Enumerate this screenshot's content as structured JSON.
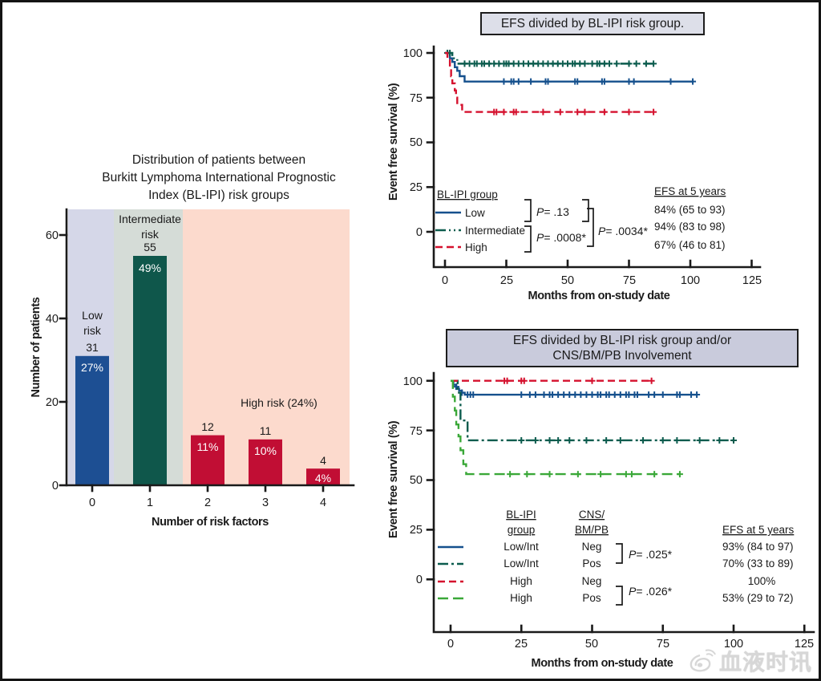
{
  "page": {
    "background": "#ffffff",
    "border_color": "#141414",
    "watermark": {
      "text": "血液时讯",
      "icon": "weibo-icon"
    }
  },
  "chart_data": [
    {
      "id": "bar-distribution",
      "type": "bar",
      "title_lines": [
        "Distribution of patients between",
        "Burkitt Lymphoma International Prognostic",
        "Index (BL-IPI) risk groups"
      ],
      "xlabel": "Number of risk factors",
      "ylabel": "Number of patients",
      "categories": [
        "0",
        "1",
        "2",
        "3",
        "4"
      ],
      "values": [
        31,
        55,
        12,
        11,
        4
      ],
      "count_labels": [
        "31",
        "55",
        "12",
        "11",
        "4"
      ],
      "pct_labels": [
        "27%",
        "49%",
        "11%",
        "10%",
        "4%"
      ],
      "bar_colors": [
        "#1d4f93",
        "#0f574b",
        "#c10e34",
        "#c10e34",
        "#c10e34"
      ],
      "ylim": [
        0,
        66
      ],
      "yticks": [
        0,
        20,
        40,
        60
      ],
      "grid": false,
      "bands": [
        {
          "label_lines": [
            "Low",
            "risk"
          ],
          "color": "#d5d7e8"
        },
        {
          "label_lines": [
            "Intermediate",
            "risk"
          ],
          "color": "#d5dcd7"
        },
        {
          "label_lines": [
            "High risk (24%)"
          ],
          "color": "#fcdacd"
        }
      ]
    },
    {
      "id": "km-efs-by-blipi",
      "type": "line",
      "title": "EFS divided by BL-IPI risk group.",
      "xlabel": "Months from on-study date",
      "ylabel": "Event free survival (%)",
      "xticks": [
        0,
        25,
        50,
        75,
        100,
        125
      ],
      "yticks": [
        0,
        25,
        50,
        75,
        100
      ],
      "xlim": [
        0,
        125
      ],
      "ylim": [
        0,
        100
      ],
      "legend_title": "BL-IPI group",
      "efs_header": "EFS at 5 years",
      "p_values": [
        {
          "p": "P",
          "value": "= .13"
        },
        {
          "p": "P",
          "value": "= .0008*"
        },
        {
          "p": "P",
          "value": "= .0034*"
        }
      ],
      "series": [
        {
          "name": "Low",
          "color": "#15508d",
          "dash": "",
          "steps": [
            [
              0,
              100
            ],
            [
              2,
              97
            ],
            [
              3,
              95
            ],
            [
              4,
              92
            ],
            [
              5,
              90
            ],
            [
              6,
              87
            ],
            [
              8,
              84
            ]
          ],
          "end_month": 101,
          "censors": [
            [
              1,
              100
            ],
            [
              24,
              84
            ],
            [
              27,
              84
            ],
            [
              28,
              84
            ],
            [
              30,
              84
            ],
            [
              35,
              84
            ],
            [
              41,
              84
            ],
            [
              42,
              84
            ],
            [
              53,
              84
            ],
            [
              54,
              84
            ],
            [
              64,
              84
            ],
            [
              65,
              84
            ],
            [
              75,
              84
            ],
            [
              77,
              84
            ],
            [
              92,
              84
            ],
            [
              101,
              84
            ]
          ],
          "efs": "84% (65 to 93)"
        },
        {
          "name": "Intermediate",
          "color": "#0c5c4e",
          "dash": "13 4 2 4 2 4",
          "steps": [
            [
              0,
              100
            ],
            [
              3,
              97
            ],
            [
              5,
              94
            ]
          ],
          "end_month": 85,
          "censors": [
            [
              1,
              100
            ],
            [
              2,
              100
            ],
            [
              8,
              94
            ],
            [
              10,
              94
            ],
            [
              12,
              94
            ],
            [
              13,
              94
            ],
            [
              15,
              94
            ],
            [
              16,
              94
            ],
            [
              18,
              94
            ],
            [
              20,
              94
            ],
            [
              22,
              94
            ],
            [
              24,
              94
            ],
            [
              25,
              94
            ],
            [
              26,
              94
            ],
            [
              28,
              94
            ],
            [
              30,
              94
            ],
            [
              32,
              94
            ],
            [
              34,
              94
            ],
            [
              36,
              94
            ],
            [
              38,
              94
            ],
            [
              40,
              94
            ],
            [
              42,
              94
            ],
            [
              44,
              94
            ],
            [
              46,
              94
            ],
            [
              48,
              94
            ],
            [
              50,
              94
            ],
            [
              52,
              94
            ],
            [
              53,
              94
            ],
            [
              55,
              94
            ],
            [
              57,
              94
            ],
            [
              60,
              94
            ],
            [
              62,
              94
            ],
            [
              63,
              94
            ],
            [
              65,
              94
            ],
            [
              67,
              94
            ],
            [
              70,
              94
            ],
            [
              75,
              94
            ],
            [
              78,
              94
            ],
            [
              82,
              94
            ],
            [
              85,
              94
            ]
          ],
          "efs": "94% (83 to 98)"
        },
        {
          "name": "High",
          "color": "#d5112e",
          "dash": "9 5",
          "steps": [
            [
              0,
              100
            ],
            [
              1,
              96
            ],
            [
              2,
              92
            ],
            [
              2.5,
              87
            ],
            [
              3,
              83
            ],
            [
              4,
              79
            ],
            [
              4.5,
              75
            ],
            [
              5,
              71
            ],
            [
              7,
              67
            ]
          ],
          "end_month": 85,
          "censors": [
            [
              20,
              67
            ],
            [
              21,
              67
            ],
            [
              24,
              67
            ],
            [
              28,
              67
            ],
            [
              29,
              67
            ],
            [
              40,
              67
            ],
            [
              47,
              67
            ],
            [
              54,
              67
            ],
            [
              57,
              67
            ],
            [
              65,
              67
            ],
            [
              75,
              67
            ],
            [
              85,
              67
            ]
          ],
          "efs": "67% (46 to 81)"
        }
      ]
    },
    {
      "id": "km-efs-by-blipi-cns",
      "type": "line",
      "title_lines": [
        "EFS divided by BL-IPI risk group and/or",
        "CNS/BM/PB Involvement"
      ],
      "xlabel": "Months from on-study date",
      "ylabel": "Event free survival (%)",
      "xticks": [
        0,
        25,
        50,
        75,
        100,
        125
      ],
      "yticks": [
        0,
        25,
        50,
        75,
        100
      ],
      "xlim": [
        0,
        125
      ],
      "ylim": [
        0,
        100
      ],
      "legend_headers": {
        "group_l1": "BL-IPI",
        "group_l2": "group",
        "cns_l1": "CNS/",
        "cns_l2": "BM/PB"
      },
      "efs_header": "EFS at 5 years",
      "p_values": [
        {
          "p": "P",
          "value": "= .025*"
        },
        {
          "p": "P",
          "value": "= .026*"
        }
      ],
      "series": [
        {
          "name": "Low/Int Neg",
          "group": "Low/Int",
          "cns": "Neg",
          "color": "#15508d",
          "dash": "",
          "steps": [
            [
              0,
              100
            ],
            [
              1,
              98
            ],
            [
              2,
              96
            ],
            [
              3,
              95
            ],
            [
              4,
              94
            ],
            [
              5,
              93
            ]
          ],
          "end_month": 87,
          "censors": [
            [
              2,
              97
            ],
            [
              4,
              94
            ],
            [
              6,
              93
            ],
            [
              7,
              93
            ],
            [
              8,
              93
            ],
            [
              25,
              93
            ],
            [
              28,
              93
            ],
            [
              30,
              93
            ],
            [
              33,
              93
            ],
            [
              35,
              93
            ],
            [
              36,
              93
            ],
            [
              38,
              93
            ],
            [
              40,
              93
            ],
            [
              42,
              93
            ],
            [
              44,
              93
            ],
            [
              46,
              93
            ],
            [
              48,
              93
            ],
            [
              50,
              93
            ],
            [
              52,
              93
            ],
            [
              53,
              93
            ],
            [
              55,
              93
            ],
            [
              56,
              93
            ],
            [
              58,
              93
            ],
            [
              60,
              93
            ],
            [
              62,
              93
            ],
            [
              63,
              93
            ],
            [
              65,
              93
            ],
            [
              66,
              93
            ],
            [
              70,
              93
            ],
            [
              72,
              93
            ],
            [
              75,
              93
            ],
            [
              80,
              93
            ],
            [
              81,
              93
            ],
            [
              85,
              93
            ],
            [
              87,
              93
            ]
          ],
          "efs": "93% (84 to 97)"
        },
        {
          "name": "Low/Int Pos",
          "group": "Low/Int",
          "cns": "Pos",
          "color": "#0c5c4e",
          "dash": "13 4 3 4",
          "steps": [
            [
              0,
              100
            ],
            [
              2.5,
              94
            ],
            [
              3.5,
              80
            ],
            [
              6,
              70
            ]
          ],
          "end_month": 100,
          "censors": [
            [
              25,
              70
            ],
            [
              30,
              70
            ],
            [
              35,
              70
            ],
            [
              38,
              70
            ],
            [
              42,
              70
            ],
            [
              48,
              70
            ],
            [
              55,
              70
            ],
            [
              60,
              70
            ],
            [
              68,
              70
            ],
            [
              75,
              70
            ],
            [
              80,
              70
            ],
            [
              88,
              70
            ],
            [
              95,
              70
            ],
            [
              100,
              70
            ]
          ],
          "efs": "70% (33 to 89)"
        },
        {
          "name": "High Neg",
          "group": "High",
          "cns": "Neg",
          "color": "#d5112e",
          "dash": "9 5",
          "steps": [
            [
              0,
              100
            ]
          ],
          "end_month": 71,
          "censors": [
            [
              19,
              100
            ],
            [
              20,
              100
            ],
            [
              25,
              100
            ],
            [
              26,
              100
            ],
            [
              50,
              100
            ],
            [
              71,
              100
            ]
          ],
          "efs": "100%"
        },
        {
          "name": "High Pos",
          "group": "High",
          "cns": "Pos",
          "color": "#3aa838",
          "dash": "13 6",
          "steps": [
            [
              0,
              100
            ],
            [
              0.8,
              92
            ],
            [
              1.5,
              85
            ],
            [
              2,
              78
            ],
            [
              2.8,
              72
            ],
            [
              3.5,
              65
            ],
            [
              4.5,
              58
            ],
            [
              5.5,
              53
            ]
          ],
          "end_month": 81,
          "censors": [
            [
              21,
              53
            ],
            [
              27,
              53
            ],
            [
              35,
              53
            ],
            [
              45,
              53
            ],
            [
              53,
              53
            ],
            [
              62,
              53
            ],
            [
              64,
              53
            ],
            [
              72,
              53
            ],
            [
              81,
              53
            ]
          ],
          "efs": "53% (29 to 72)"
        }
      ]
    }
  ]
}
